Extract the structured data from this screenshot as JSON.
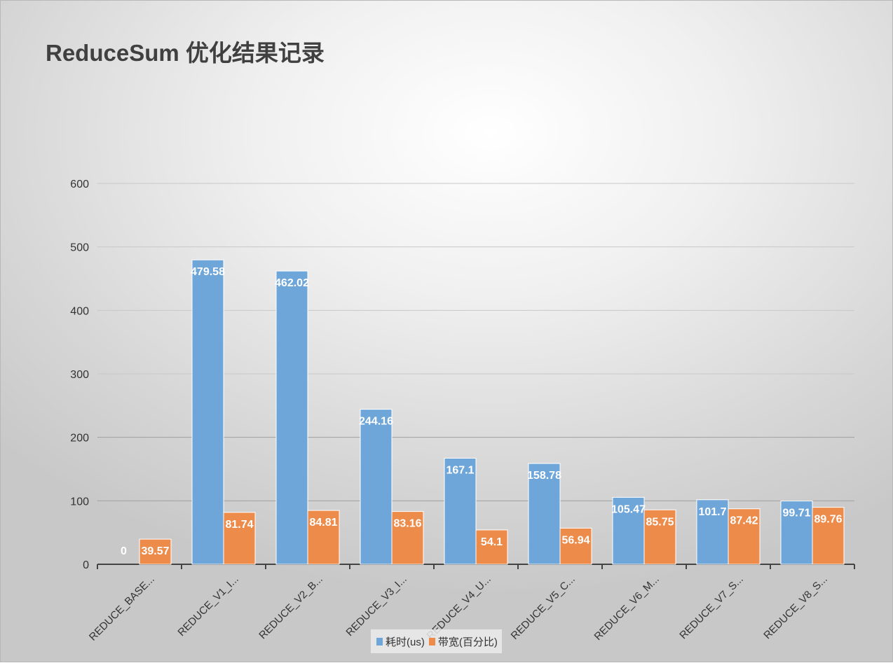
{
  "chart_data": {
    "type": "bar",
    "title": "ReduceSum 优化结果记录",
    "categories": [
      "REDUCE_BASE...",
      "REDUCE_V1_I...",
      "REDUCE_V2_B...",
      "REDUCE_V3_I...",
      "REDUCE_V4_U...",
      "REDUCE_V5_C...",
      "REDUCE_V6_M...",
      "REDUCE_V7_S...",
      "REDUCE_V8_S..."
    ],
    "series": [
      {
        "name": "耗时(us)",
        "color": "#6fa6d9",
        "values": [
          0,
          479.58,
          462.02,
          244.16,
          167.1,
          158.78,
          105.47,
          101.7,
          99.71
        ]
      },
      {
        "name": "带宽(百分比)",
        "color": "#ec8b4a",
        "values": [
          39.57,
          81.74,
          84.81,
          83.16,
          54.1,
          56.94,
          85.75,
          87.42,
          89.76
        ]
      }
    ],
    "ylim": [
      0,
      600
    ],
    "yticks": [
      0,
      100,
      200,
      300,
      400,
      500,
      600
    ],
    "grid": true,
    "legend": "bottom",
    "xlabel": "",
    "ylabel": ""
  }
}
